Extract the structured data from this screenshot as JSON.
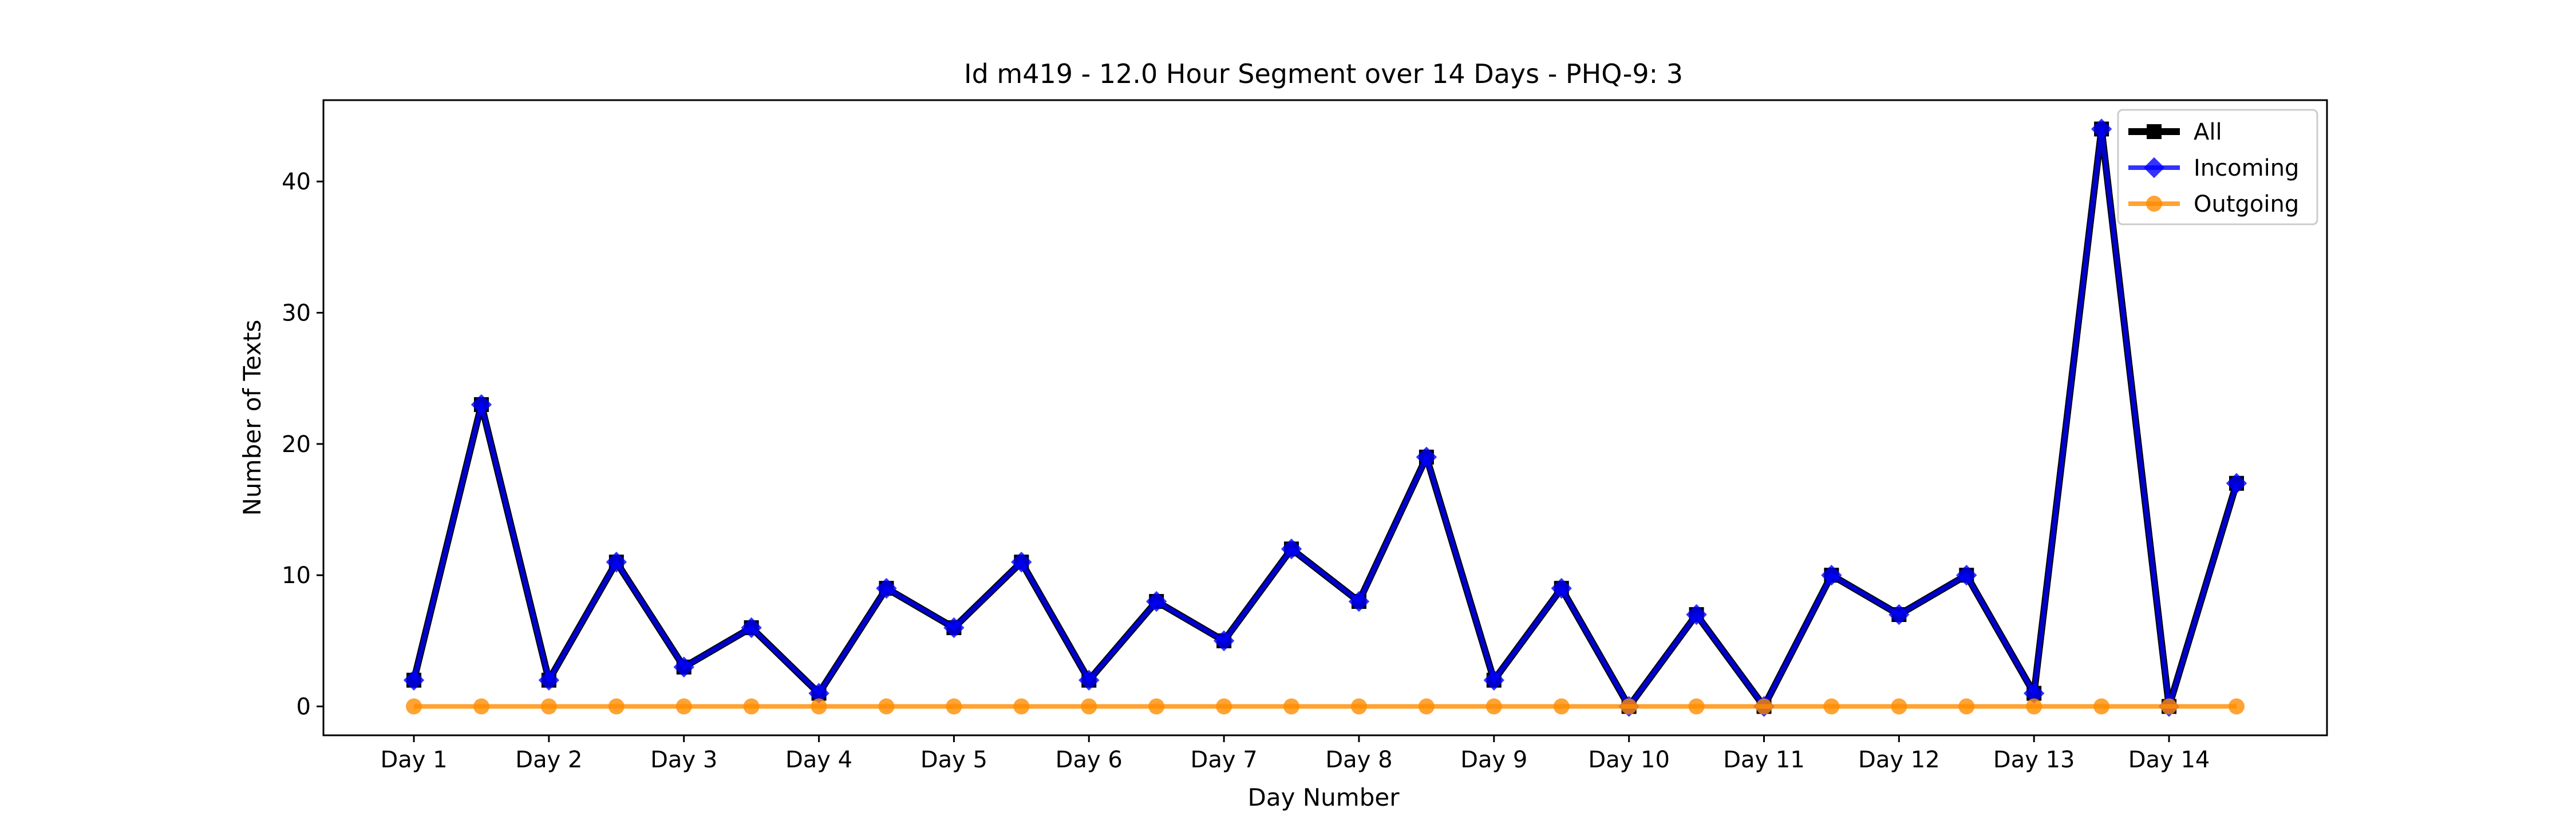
{
  "chart_data": {
    "type": "line",
    "title": "Id m419 - 12.0 Hour Segment over 14 Days - PHQ-9: 3",
    "xlabel": "Day Number",
    "ylabel": "Number of Texts",
    "categories": [
      "Day 1",
      "Day 2",
      "Day 3",
      "Day 4",
      "Day 5",
      "Day 6",
      "Day 7",
      "Day 8",
      "Day 9",
      "Day 10",
      "Day 11",
      "Day 12",
      "Day 13",
      "Day 14"
    ],
    "x": [
      1,
      1.5,
      2,
      2.5,
      3,
      3.5,
      4,
      4.5,
      5,
      5.5,
      6,
      6.5,
      7,
      7.5,
      8,
      8.5,
      9,
      9.5,
      10,
      10.5,
      11,
      11.5,
      12,
      12.5,
      13,
      13.5,
      14,
      14.5
    ],
    "xlim": [
      0.33,
      15.17
    ],
    "ylim": [
      -2.2,
      46.2
    ],
    "yticks": [
      0,
      10,
      20,
      30,
      40
    ],
    "grid": false,
    "legend_position": "top-right",
    "series": [
      {
        "name": "All",
        "color": "#000000",
        "marker": "square",
        "values": [
          2,
          23,
          2,
          11,
          3,
          6,
          1,
          9,
          6,
          11,
          2,
          8,
          5,
          12,
          8,
          19,
          2,
          9,
          0,
          7,
          0,
          10,
          7,
          10,
          1,
          44,
          0,
          17
        ]
      },
      {
        "name": "Incoming",
        "color": "#0000ff",
        "marker": "diamond",
        "values": [
          2,
          23,
          2,
          11,
          3,
          6,
          1,
          9,
          6,
          11,
          2,
          8,
          5,
          12,
          8,
          19,
          2,
          9,
          0,
          7,
          0,
          10,
          7,
          10,
          1,
          44,
          0,
          17
        ]
      },
      {
        "name": "Outgoing",
        "color": "#ff8c00",
        "marker": "circle",
        "values": [
          0,
          0,
          0,
          0,
          0,
          0,
          0,
          0,
          0,
          0,
          0,
          0,
          0,
          0,
          0,
          0,
          0,
          0,
          0,
          0,
          0,
          0,
          0,
          0,
          0,
          0,
          0,
          0
        ]
      }
    ]
  }
}
